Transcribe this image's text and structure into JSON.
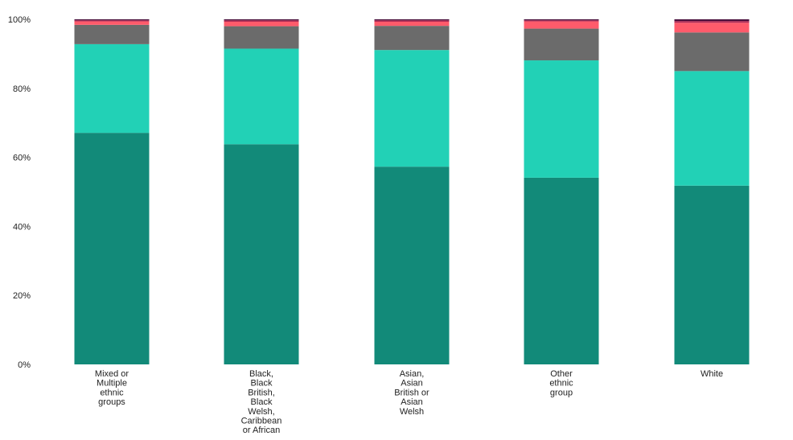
{
  "chart_data": {
    "type": "bar",
    "stacked": true,
    "normalized": true,
    "title": "",
    "xlabel": "",
    "ylabel": "",
    "ylim": [
      0,
      100
    ],
    "y_ticks": [
      "0%",
      "20%",
      "40%",
      "60%",
      "80%",
      "100%"
    ],
    "y_tick_values": [
      0,
      20,
      40,
      60,
      80,
      100
    ],
    "grid": false,
    "legend": "none",
    "categories": [
      "Mixed or Multiple ethnic groups",
      "Black, Black British, Black Welsh, Caribbean or African",
      "Asian, Asian British or Asian Welsh",
      "Other ethnic group",
      "White"
    ],
    "category_label_lines": [
      [
        "Mixed or",
        "Multiple",
        "ethnic",
        "groups"
      ],
      [
        "Black,",
        "Black",
        "British,",
        "Black",
        "Welsh,",
        "Caribbean",
        "or African"
      ],
      [
        "Asian,",
        "Asian",
        "British or",
        "Asian",
        "Welsh"
      ],
      [
        "Other",
        "ethnic",
        "group"
      ],
      [
        "White"
      ]
    ],
    "series": [
      {
        "color": "#128a79",
        "values": [
          67.1,
          63.8,
          57.3,
          54.1,
          51.8
        ]
      },
      {
        "color": "#22d1b6",
        "values": [
          25.7,
          27.7,
          33.8,
          34.0,
          33.2
        ]
      },
      {
        "color": "#6b6b6b",
        "values": [
          5.6,
          6.5,
          7.0,
          9.2,
          11.2
        ]
      },
      {
        "color": "#ff5b6b",
        "values": [
          1.0,
          1.3,
          1.2,
          2.1,
          2.8
        ]
      },
      {
        "color": "#b02a54",
        "values": [
          0.3,
          0.4,
          0.4,
          0.3,
          0.5
        ]
      },
      {
        "color": "#4a0f3c",
        "values": [
          0.3,
          0.3,
          0.3,
          0.3,
          0.5
        ]
      }
    ]
  }
}
